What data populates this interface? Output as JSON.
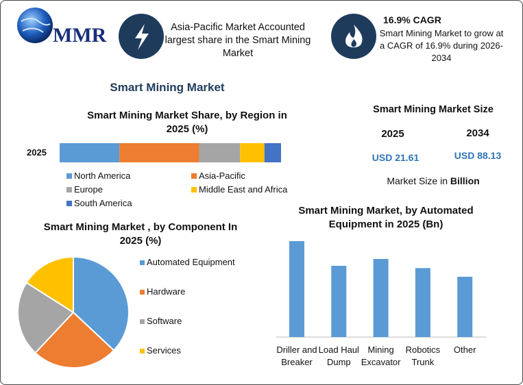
{
  "logo": "MMR",
  "callouts": [
    {
      "text": "Asia-Pacific Market Accounted largest share in the Smart Mining Market"
    },
    {
      "title": "16.9% CAGR",
      "text": "Smart Mining Market to grow at a CAGR of 16.9% during 2026-2034"
    }
  ],
  "title": "Smart Mining Market",
  "market_size": {
    "title": "Smart Mining Market Size",
    "years": [
      "2025",
      "2034"
    ],
    "values": [
      "USD 21.61",
      "USD 88.13"
    ],
    "note": "Market Size in",
    "note_unit": "Billion"
  },
  "chart_data": [
    {
      "type": "bar",
      "orientation": "horizontal",
      "stacked": true,
      "title": "Smart Mining Market Share, by Region in 2025 (%)",
      "categories": [
        "2025"
      ],
      "series": [
        {
          "name": "North America",
          "color": "#5b9bd5",
          "values": [
            27
          ]
        },
        {
          "name": "Asia-Pacific",
          "color": "#ed7d31",
          "values": [
            36
          ]
        },
        {
          "name": "Europe",
          "color": "#a5a5a5",
          "values": [
            18.5
          ]
        },
        {
          "name": "Middle East and Africa",
          "color": "#ffc000",
          "values": [
            11
          ]
        },
        {
          "name": "South America",
          "color": "#4472c4",
          "values": [
            7.5
          ]
        }
      ]
    },
    {
      "type": "pie",
      "title": "Smart Mining Market , by Component In 2025 (%)",
      "categories": [
        "Automated Equipment",
        "Hardware",
        "Software",
        "Services"
      ],
      "values": [
        37,
        25,
        22,
        16
      ],
      "colors": [
        "#5b9bd5",
        "#ed7d31",
        "#a5a5a5",
        "#ffc000"
      ]
    },
    {
      "type": "bar",
      "title": "Smart Mining Market, by Automated Equipment in 2025 (Bn)",
      "categories": [
        "Driller and Breaker",
        "Load Haul Dump",
        "Mining Excavator",
        "Robotics Trunk",
        "Other"
      ],
      "values": [
        2.1,
        1.56,
        1.71,
        1.51,
        1.32
      ],
      "color": "#5b9bd5"
    }
  ]
}
